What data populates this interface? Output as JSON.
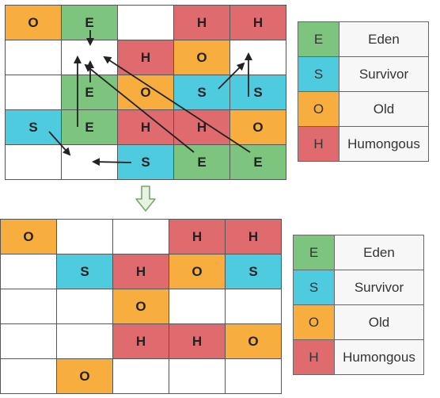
{
  "colors": {
    "E": "#7dc57f",
    "S": "#4fcbe0",
    "O": "#f8ae3f",
    "H": "#e06b6f",
    "empty": "#ffffff"
  },
  "top_grid": [
    [
      "O",
      "E",
      "",
      "H",
      "H"
    ],
    [
      "",
      "",
      "H",
      "O",
      ""
    ],
    [
      "",
      "E",
      "O",
      "S",
      "S"
    ],
    [
      "S",
      "E",
      "H",
      "H",
      "O"
    ],
    [
      "",
      "",
      "S",
      "E",
      "E"
    ]
  ],
  "bottom_grid": [
    [
      "O",
      "",
      "",
      "H",
      "H"
    ],
    [
      "",
      "S",
      "H",
      "O",
      "S"
    ],
    [
      "",
      "",
      "O",
      "",
      ""
    ],
    [
      "",
      "",
      "H",
      "H",
      "O"
    ],
    [
      "",
      "O",
      "",
      "",
      ""
    ]
  ],
  "legend": [
    {
      "key": "E",
      "label": "Eden"
    },
    {
      "key": "S",
      "label": "Survivor"
    },
    {
      "key": "O",
      "label": "Old"
    },
    {
      "key": "H",
      "label": "Humongous"
    }
  ]
}
